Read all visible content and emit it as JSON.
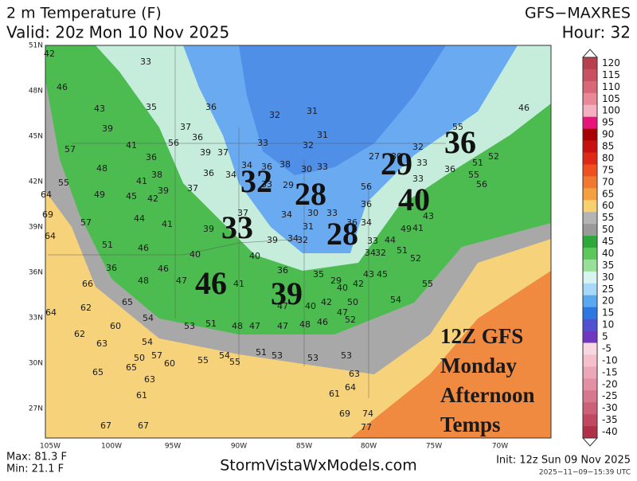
{
  "header": {
    "title": "2 m Temperature (F)",
    "valid": "Valid: 20z Mon 10 Nov 2025",
    "model": "GFS−MAXRES",
    "hour": "Hour: 32"
  },
  "map": {
    "lon_labels": [
      "105W",
      "100W",
      "95W",
      "90W",
      "85W",
      "80W",
      "75W",
      "70W"
    ],
    "lat_labels": [
      "51N",
      "48N",
      "45N",
      "42N",
      "39N",
      "36N",
      "33N",
      "30N",
      "27N"
    ],
    "big_values": [
      32,
      28,
      29,
      40,
      36,
      33,
      28,
      46,
      39
    ],
    "station_values": [
      42,
      33,
      46,
      43,
      35,
      36,
      31,
      32,
      39,
      37,
      36,
      56,
      41,
      57,
      31,
      32,
      33,
      36,
      39,
      37,
      48,
      34,
      36,
      38,
      30,
      33,
      27,
      30,
      32,
      33,
      36,
      51,
      52,
      46,
      55,
      41,
      38,
      37,
      36,
      34,
      29,
      33,
      56,
      33,
      55,
      56,
      42,
      39,
      49,
      45,
      55,
      64,
      57,
      44,
      41,
      39,
      37,
      34,
      30,
      33,
      36,
      43,
      36,
      34,
      31,
      32,
      34,
      39,
      33,
      44,
      41,
      49,
      51,
      46,
      40,
      40,
      34,
      32,
      51,
      52,
      36,
      46,
      36,
      35,
      45,
      43,
      66,
      48,
      47,
      41,
      29,
      42,
      55,
      40,
      69,
      64,
      62,
      65,
      54,
      51,
      47,
      40,
      42,
      50,
      54,
      64,
      62,
      60,
      54,
      53,
      48,
      47,
      47,
      48,
      46,
      47,
      52,
      63,
      57,
      54,
      51,
      53,
      53,
      53,
      50,
      55,
      55,
      60,
      65,
      65,
      63,
      61,
      63,
      64,
      61,
      67,
      67,
      69,
      74,
      77
    ],
    "annotation": [
      "12Z GFS",
      "Monday",
      "Afternoon",
      "Temps"
    ]
  },
  "colorbar": {
    "labels": [
      120,
      115,
      110,
      105,
      100,
      95,
      90,
      85,
      80,
      75,
      70,
      65,
      60,
      55,
      50,
      45,
      40,
      35,
      30,
      25,
      20,
      15,
      10,
      5,
      -5,
      -10,
      -15,
      -20,
      -25,
      -30,
      -35,
      -40
    ],
    "colors": [
      "#b8404c",
      "#c85060",
      "#d86878",
      "#e88898",
      "#f4b0c0",
      "#e8147c",
      "#a80000",
      "#c81010",
      "#e02818",
      "#f05020",
      "#f07830",
      "#f4a040",
      "#f8d070",
      "#b4b4b4",
      "#9a9a9a",
      "#2ea83a",
      "#5cc85c",
      "#98e098",
      "#d8f4f0",
      "#a8d8f8",
      "#5aa8f0",
      "#2c78e0",
      "#5050d0",
      "#7038c0",
      "#f8d8e0",
      "#f4c0cc",
      "#eca8b8",
      "#e490a4",
      "#d87890",
      "#cc6078",
      "#c04860",
      "#b03048"
    ]
  },
  "footer": {
    "max": "Max: 81.3 F",
    "min": "Min: 21.1 F",
    "site": "StormVistaWxModels.com",
    "init": "Init: 12z Sun 09 Nov 2025",
    "timestamp": "2025−11−09−15:39 UTC"
  }
}
